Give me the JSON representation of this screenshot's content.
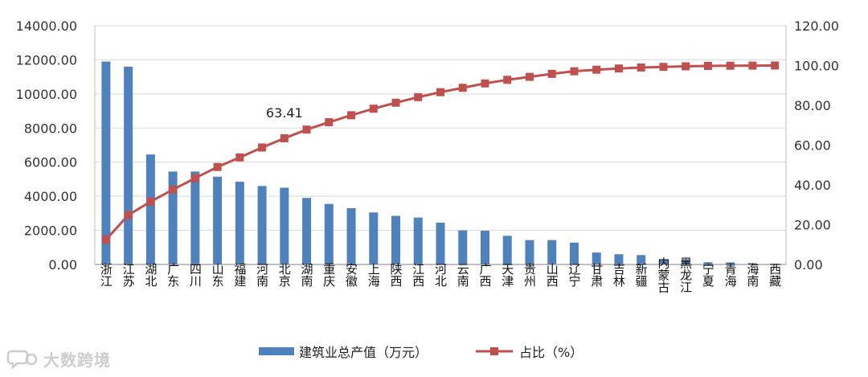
{
  "chart_data": {
    "type": "bar",
    "categories": [
      "浙江",
      "江苏",
      "湖北",
      "广东",
      "四川",
      "山东",
      "福建",
      "河南",
      "北京",
      "湖南",
      "重庆",
      "安徽",
      "上海",
      "陕西",
      "江西",
      "河北",
      "云南",
      "广西",
      "天津",
      "贵州",
      "山西",
      "辽宁",
      "甘肃",
      "吉林",
      "新疆",
      "内蒙古",
      "黑龙江",
      "宁夏",
      "青海",
      "海南",
      "西藏"
    ],
    "series": [
      {
        "name": "建筑业总产值（万元）",
        "type": "bar",
        "axis": "left",
        "color": "#4F81BD",
        "values": [
          11900,
          11600,
          6450,
          5450,
          5450,
          5150,
          4850,
          4600,
          4500,
          3900,
          3550,
          3300,
          3050,
          2850,
          2750,
          2450,
          2000,
          1980,
          1680,
          1430,
          1430,
          1280,
          700,
          600,
          550,
          290,
          270,
          130,
          120,
          80,
          40
        ]
      },
      {
        "name": "占比（%）",
        "type": "line",
        "axis": "right",
        "color": "#C0504D",
        "values": [
          12.5,
          24.8,
          31.6,
          37.6,
          43.4,
          49.0,
          53.8,
          58.8,
          63.41,
          67.8,
          71.5,
          75.0,
          78.3,
          81.3,
          84.1,
          86.6,
          88.8,
          91.0,
          92.8,
          94.3,
          95.8,
          97.1,
          97.9,
          98.5,
          99.0,
          99.3,
          99.6,
          99.8,
          99.9,
          99.95,
          100.0
        ]
      }
    ],
    "y_left": {
      "min": 0,
      "max": 14000,
      "step": 2000,
      "tick_labels": [
        "0.00",
        "2000.00",
        "4000.00",
        "6000.00",
        "8000.00",
        "10000.00",
        "12000.00",
        "14000.00"
      ]
    },
    "y_right": {
      "min": 0,
      "max": 120,
      "step": 20,
      "tick_labels": [
        "0.00",
        "20.00",
        "40.00",
        "60.00",
        "80.00",
        "100.00",
        "120.00"
      ]
    },
    "annotations": [
      {
        "category": "北京",
        "series": "占比（%）",
        "text": "63.41"
      }
    ],
    "grid": "horizontal",
    "legend_position": "bottom"
  },
  "watermark": {
    "text": "大数跨境",
    "icon": "chat-bubble-logo"
  }
}
